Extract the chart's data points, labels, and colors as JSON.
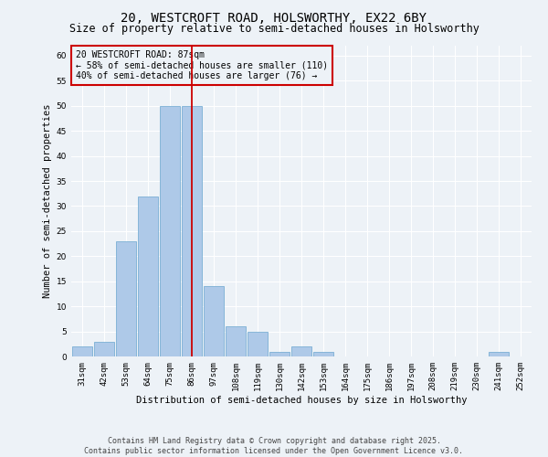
{
  "title1": "20, WESTCROFT ROAD, HOLSWORTHY, EX22 6BY",
  "title2": "Size of property relative to semi-detached houses in Holsworthy",
  "xlabel": "Distribution of semi-detached houses by size in Holsworthy",
  "ylabel": "Number of semi-detached properties",
  "categories": [
    "31sqm",
    "42sqm",
    "53sqm",
    "64sqm",
    "75sqm",
    "86sqm",
    "97sqm",
    "108sqm",
    "119sqm",
    "130sqm",
    "142sqm",
    "153sqm",
    "164sqm",
    "175sqm",
    "186sqm",
    "197sqm",
    "208sqm",
    "219sqm",
    "230sqm",
    "241sqm",
    "252sqm"
  ],
  "values": [
    2,
    3,
    23,
    32,
    50,
    50,
    14,
    6,
    5,
    1,
    2,
    1,
    0,
    0,
    0,
    0,
    0,
    0,
    0,
    1,
    0
  ],
  "bar_color": "#aec9e8",
  "bar_edge_color": "#7aafd4",
  "vline_x": 5,
  "vline_color": "#cc0000",
  "annotation_text": "20 WESTCROFT ROAD: 87sqm\n← 58% of semi-detached houses are smaller (110)\n40% of semi-detached houses are larger (76) →",
  "annotation_box_color": "#cc0000",
  "ylim": [
    0,
    62
  ],
  "yticks": [
    0,
    5,
    10,
    15,
    20,
    25,
    30,
    35,
    40,
    45,
    50,
    55,
    60
  ],
  "footer": "Contains HM Land Registry data © Crown copyright and database right 2025.\nContains public sector information licensed under the Open Government Licence v3.0.",
  "bg_color": "#edf2f7",
  "grid_color": "#ffffff",
  "title_fontsize": 10,
  "subtitle_fontsize": 8.5,
  "label_fontsize": 7.5,
  "tick_fontsize": 6.5,
  "footer_fontsize": 6.0,
  "annot_fontsize": 7.0
}
